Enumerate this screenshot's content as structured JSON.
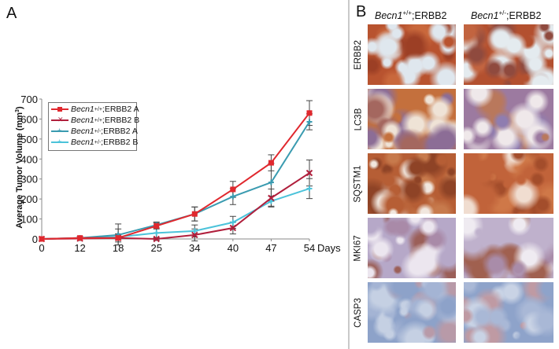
{
  "figure": {
    "panel_a_letter": "A",
    "panel_b_letter": "B"
  },
  "chart_data": {
    "type": "line",
    "title": "",
    "xlabel": "Days",
    "ylabel": "Average Tumor Volume (mm³)",
    "ylabel_main": "Average Tumor Volume (mm",
    "ylabel_sup": "3",
    "ylabel_end": ")",
    "ylim": [
      0,
      700
    ],
    "yticks": [
      0,
      100,
      200,
      300,
      400,
      500,
      600,
      700
    ],
    "x": [
      0,
      12,
      18,
      25,
      34,
      40,
      47,
      54
    ],
    "x_tick_labels": [
      "0",
      "12",
      "18",
      "25",
      "34",
      "40",
      "47",
      "54"
    ],
    "x_axis_spacing": "categorical-even",
    "grid": false,
    "legend_position": "upper-left",
    "series": [
      {
        "name": "Becn1+/+;ERBB2 A",
        "gene": "Becn1",
        "genotype": "+/+",
        "suffix": ";ERBB2 A",
        "color": "#e0282e",
        "marker": "square",
        "values": [
          0,
          5,
          5,
          65,
          125,
          248,
          381,
          630
        ],
        "error": [
          0,
          3,
          20,
          15,
          35,
          40,
          40,
          62
        ]
      },
      {
        "name": "Becn1+/+;ERBB2 B",
        "gene": "Becn1",
        "genotype": "+/+",
        "suffix": ";ERBB2 B",
        "color": "#b01f3c",
        "marker": "x",
        "values": [
          0,
          2,
          5,
          0,
          20,
          55,
          205,
          330
        ],
        "error": [
          0,
          2,
          45,
          5,
          30,
          30,
          45,
          65
        ]
      },
      {
        "name": "Becn1+/-;ERBB2 A",
        "gene": "Becn1",
        "genotype": "+/-",
        "suffix": ";ERBB2 A",
        "color": "#3a9bb0",
        "marker": "plus",
        "values": [
          0,
          5,
          20,
          70,
          125,
          212,
          283,
          586
        ],
        "error": [
          0,
          3,
          55,
          15,
          35,
          40,
          95,
          40
        ]
      },
      {
        "name": "Becn1+/-;ERBB2 B",
        "gene": "Becn1",
        "genotype": "+/-",
        "suffix": ";ERBB2 B",
        "color": "#4cc3da",
        "marker": "plus",
        "values": [
          0,
          5,
          10,
          30,
          40,
          83,
          189,
          252
        ],
        "error": [
          0,
          3,
          15,
          25,
          30,
          30,
          25,
          50
        ]
      }
    ]
  },
  "ihc": {
    "columns": [
      {
        "gene": "Becn1",
        "genotype": "+/+",
        "suffix": ";ERBB2"
      },
      {
        "gene": "Becn1",
        "genotype": "+/-",
        "suffix": ";ERBB2"
      }
    ],
    "rows": [
      {
        "label": "ERBB2",
        "tones": [
          [
            "#b8532f",
            "#c9683c",
            "#9c3f25",
            "#dfe7ee"
          ],
          [
            "#b3502f",
            "#c26440",
            "#8f4a3e",
            "#e4ebef"
          ]
        ]
      },
      {
        "label": "LC3B",
        "tones": [
          [
            "#c4703d",
            "#a4675f",
            "#8c6d96",
            "#efe3d6"
          ],
          [
            "#9c7aa0",
            "#b9785c",
            "#8f7db0",
            "#efe8ea"
          ]
        ]
      },
      {
        "label": "SQSTM1",
        "tones": [
          [
            "#b65e35",
            "#c77a4c",
            "#8e4326",
            "#f1e7de"
          ],
          [
            "#c1633a",
            "#cf7848",
            "#a34d2b",
            "#f0ddd0"
          ]
        ]
      },
      {
        "label": "MKI67",
        "tones": [
          [
            "#b6a8c8",
            "#a98aa8",
            "#9b5f58",
            "#ece6ef"
          ],
          [
            "#bfb1cc",
            "#a98ca9",
            "#a0604f",
            "#efebf1"
          ]
        ]
      },
      {
        "label": "CASP3",
        "tones": [
          [
            "#8da2c9",
            "#a4b4d4",
            "#b89aa8",
            "#c5d0e3"
          ],
          [
            "#8ea3ca",
            "#a9b8d6",
            "#bf9aa3",
            "#c9d3e5"
          ]
        ]
      }
    ]
  }
}
